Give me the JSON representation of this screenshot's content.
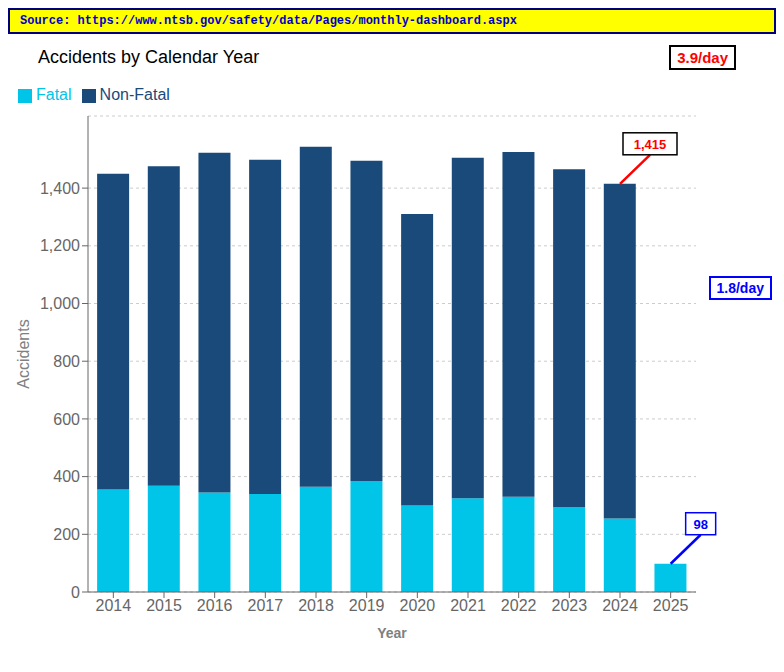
{
  "chart_data": {
    "type": "bar",
    "stacked": true,
    "title": "Accidents by Calendar Year",
    "source": "Source: https://www.ntsb.gov/safety/data/Pages/monthly-dashboard.aspx",
    "x_label": "Year",
    "y_label": "Accidents",
    "categories": [
      "2014",
      "2015",
      "2016",
      "2017",
      "2018",
      "2019",
      "2020",
      "2021",
      "2022",
      "2023",
      "2024",
      "2025"
    ],
    "series": [
      {
        "name": "Fatal",
        "color": "#00C5E8",
        "values": [
          355,
          368,
          345,
          340,
          365,
          385,
          300,
          325,
          330,
          295,
          255,
          98
        ]
      },
      {
        "name": "Non-Fatal",
        "color": "#1A4A7A",
        "values": [
          1095,
          1108,
          1178,
          1158,
          1178,
          1110,
          1010,
          1180,
          1195,
          1170,
          1160,
          0
        ]
      }
    ],
    "ylim": [
      0,
      1650
    ],
    "yticks": [
      0,
      200,
      400,
      600,
      800,
      {
        "value": 1000,
        "label": "1,000"
      },
      {
        "value": 1200,
        "label": "1,200"
      },
      {
        "value": 1400,
        "label": "1,400"
      }
    ],
    "grid": true,
    "legend": "upper left",
    "annotations": [
      {
        "text": "1,415",
        "x": "2024",
        "y": 1415,
        "color": "red"
      },
      {
        "text": "3.9/day",
        "color": "red"
      },
      {
        "text": "98",
        "x": "2025",
        "y": 98,
        "color": "blue"
      },
      {
        "text": "1.8/day",
        "color": "blue"
      }
    ]
  }
}
